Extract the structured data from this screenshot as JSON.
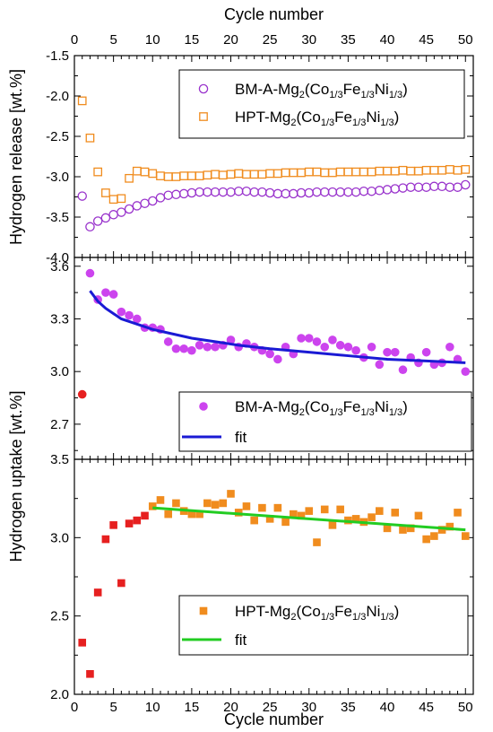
{
  "chart_data": [
    {
      "type": "scatter",
      "panel": "top",
      "ylabel": "Hydrogen release [wt.%]",
      "top_xlabel": "Cycle number",
      "xlim": [
        0,
        51
      ],
      "ylim": [
        -4.0,
        -1.5
      ],
      "yticks": [
        "-1.5",
        "-2.0",
        "-2.5",
        "-3.0",
        "-3.5",
        "-4.0"
      ],
      "ytick_values": [
        -1.5,
        -2.0,
        -2.5,
        -3.0,
        -3.5,
        -4.0
      ],
      "xticks": [
        0,
        5,
        10,
        15,
        20,
        25,
        30,
        35,
        40,
        45,
        50
      ],
      "legend": "top-right",
      "series": [
        {
          "name": "BM-A-Mg2(Co1/3Fe1/3Ni1/3)",
          "marker": "open-circle",
          "color": "#9933cc",
          "x": [
            1,
            2,
            3,
            4,
            5,
            6,
            7,
            8,
            9,
            10,
            11,
            12,
            13,
            14,
            15,
            16,
            17,
            18,
            19,
            20,
            21,
            22,
            23,
            24,
            25,
            26,
            27,
            28,
            29,
            30,
            31,
            32,
            33,
            34,
            35,
            36,
            37,
            38,
            39,
            40,
            41,
            42,
            43,
            44,
            45,
            46,
            47,
            48,
            49,
            50
          ],
          "values": [
            -3.24,
            -3.62,
            -3.55,
            -3.51,
            -3.47,
            -3.44,
            -3.4,
            -3.36,
            -3.33,
            -3.3,
            -3.26,
            -3.23,
            -3.22,
            -3.21,
            -3.2,
            -3.19,
            -3.19,
            -3.19,
            -3.19,
            -3.19,
            -3.18,
            -3.18,
            -3.19,
            -3.19,
            -3.2,
            -3.21,
            -3.21,
            -3.21,
            -3.2,
            -3.2,
            -3.19,
            -3.19,
            -3.19,
            -3.19,
            -3.19,
            -3.19,
            -3.18,
            -3.18,
            -3.17,
            -3.16,
            -3.15,
            -3.14,
            -3.13,
            -3.13,
            -3.13,
            -3.12,
            -3.12,
            -3.13,
            -3.13,
            -3.1
          ]
        },
        {
          "name": "HPT-Mg2(Co1/3Fe1/3Ni1/3)",
          "marker": "open-square",
          "color": "#f08c1e",
          "x": [
            1,
            2,
            3,
            4,
            5,
            6,
            7,
            8,
            9,
            10,
            11,
            12,
            13,
            14,
            15,
            16,
            17,
            18,
            19,
            20,
            21,
            22,
            23,
            24,
            25,
            26,
            27,
            28,
            29,
            30,
            31,
            32,
            33,
            34,
            35,
            36,
            37,
            38,
            39,
            40,
            41,
            42,
            43,
            44,
            45,
            46,
            47,
            48,
            49,
            50
          ],
          "values": [
            -2.06,
            -2.52,
            -2.94,
            -3.2,
            -3.28,
            -3.27,
            -3.02,
            -2.93,
            -2.94,
            -2.96,
            -2.99,
            -3.0,
            -3.0,
            -2.99,
            -2.99,
            -2.99,
            -2.98,
            -2.97,
            -2.98,
            -2.97,
            -2.96,
            -2.97,
            -2.97,
            -2.97,
            -2.96,
            -2.96,
            -2.95,
            -2.95,
            -2.95,
            -2.94,
            -2.94,
            -2.95,
            -2.95,
            -2.94,
            -2.94,
            -2.94,
            -2.94,
            -2.94,
            -2.93,
            -2.93,
            -2.93,
            -2.92,
            -2.93,
            -2.93,
            -2.92,
            -2.92,
            -2.92,
            -2.91,
            -2.92,
            -2.91
          ]
        }
      ]
    },
    {
      "type": "scatter",
      "panel": "middle",
      "shared_ylabel": "Hydrogen uptake [wt.%]",
      "xlim": [
        0,
        51
      ],
      "ylim": [
        2.5,
        3.65
      ],
      "yticks": [
        "3.6",
        "3.3",
        "3.0",
        "2.7"
      ],
      "ytick_values": [
        3.6,
        3.3,
        3.0,
        2.7
      ],
      "legend": "bottom-right",
      "first_point": {
        "x": 1,
        "y": 2.87,
        "color": "#e62020"
      },
      "series": [
        {
          "name": "BM-A-Mg2(Co1/3Fe1/3Ni1/3)",
          "marker": "filled-circle",
          "color": "#cc44ee",
          "x": [
            2,
            3,
            4,
            5,
            6,
            7,
            8,
            9,
            10,
            11,
            12,
            13,
            14,
            15,
            16,
            17,
            18,
            19,
            20,
            21,
            22,
            23,
            24,
            25,
            26,
            27,
            28,
            29,
            30,
            31,
            32,
            33,
            34,
            35,
            36,
            37,
            38,
            39,
            40,
            41,
            42,
            43,
            44,
            45,
            46,
            47,
            48,
            49,
            50
          ],
          "values": [
            3.56,
            3.41,
            3.45,
            3.44,
            3.34,
            3.32,
            3.3,
            3.25,
            3.25,
            3.24,
            3.17,
            3.13,
            3.13,
            3.12,
            3.15,
            3.14,
            3.14,
            3.15,
            3.18,
            3.14,
            3.16,
            3.14,
            3.12,
            3.1,
            3.07,
            3.14,
            3.1,
            3.19,
            3.19,
            3.17,
            3.14,
            3.18,
            3.15,
            3.14,
            3.12,
            3.08,
            3.14,
            3.04,
            3.11,
            3.11,
            3.01,
            3.08,
            3.05,
            3.11,
            3.04,
            3.05,
            3.14,
            3.07,
            3.0
          ]
        },
        {
          "name": "fit",
          "line": true,
          "color": "#1a1ad4",
          "x": [
            2,
            3,
            4,
            5,
            6,
            8,
            10,
            12,
            15,
            18,
            21,
            25,
            30,
            35,
            40,
            45,
            50
          ],
          "values": [
            3.46,
            3.4,
            3.36,
            3.33,
            3.3,
            3.27,
            3.24,
            3.22,
            3.19,
            3.17,
            3.15,
            3.13,
            3.11,
            3.09,
            3.07,
            3.06,
            3.05
          ]
        }
      ]
    },
    {
      "type": "scatter",
      "panel": "bottom",
      "xlabel": "Cycle number",
      "xlim": [
        0,
        51
      ],
      "ylim": [
        2.0,
        3.5
      ],
      "yticks": [
        "3.5",
        "3.0",
        "2.5",
        "2.0"
      ],
      "ytick_values": [
        3.5,
        3.0,
        2.5,
        2.0
      ],
      "xticks": [
        0,
        5,
        10,
        15,
        20,
        25,
        30,
        35,
        40,
        45,
        50
      ],
      "legend": "bottom-right",
      "red_points": {
        "color": "#e62020",
        "x": [
          1,
          2,
          3,
          4,
          5,
          6,
          7,
          8,
          9
        ],
        "values": [
          2.33,
          2.13,
          2.65,
          2.99,
          3.08,
          2.71,
          3.09,
          3.11,
          3.14
        ]
      },
      "series": [
        {
          "name": "HPT-Mg2(Co1/3Fe1/3Ni1/3)",
          "marker": "filled-square",
          "color": "#f08c1e",
          "x": [
            10,
            11,
            12,
            13,
            14,
            15,
            16,
            17,
            18,
            19,
            20,
            21,
            22,
            23,
            24,
            25,
            26,
            27,
            28,
            29,
            30,
            31,
            32,
            33,
            34,
            35,
            36,
            37,
            38,
            39,
            40,
            41,
            42,
            43,
            44,
            45,
            46,
            47,
            48,
            49,
            50
          ],
          "values": [
            3.2,
            3.24,
            3.15,
            3.22,
            3.17,
            3.15,
            3.15,
            3.22,
            3.21,
            3.22,
            3.28,
            3.16,
            3.2,
            3.11,
            3.19,
            3.12,
            3.19,
            3.1,
            3.15,
            3.14,
            3.17,
            2.97,
            3.18,
            3.08,
            3.18,
            3.11,
            3.12,
            3.1,
            3.13,
            3.17,
            3.06,
            3.16,
            3.05,
            3.06,
            3.14,
            2.99,
            3.01,
            3.05,
            3.07,
            3.16,
            3.01
          ]
        },
        {
          "name": "fit",
          "line": true,
          "color": "#22cc22",
          "x": [
            10,
            50
          ],
          "values": [
            3.19,
            3.05
          ]
        }
      ]
    }
  ],
  "legend_labels": {
    "prefix_bm": "BM-A-Mg",
    "prefix_hpt": "HPT-Mg",
    "sub2": "2",
    "co": "(Co",
    "fe": "Fe",
    "ni": "Ni",
    "third": "1/3",
    "close": ")",
    "fit": "fit"
  }
}
